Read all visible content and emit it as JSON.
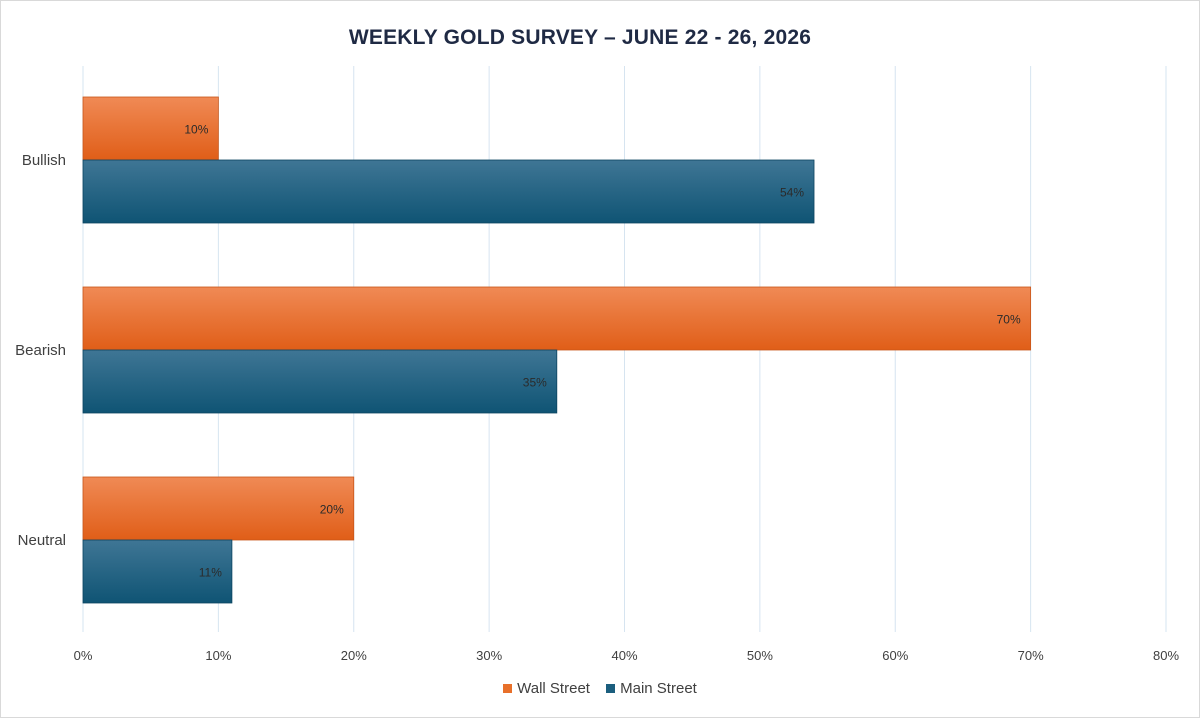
{
  "chart_data": {
    "type": "bar",
    "orientation": "horizontal",
    "title": "WEEKLY GOLD SURVEY – JUNE 22 - 26, 2026",
    "categories": [
      "Bullish",
      "Bearish",
      "Neutral"
    ],
    "series": [
      {
        "name": "Wall Street",
        "values": [
          10,
          70,
          20
        ],
        "labels": [
          "10%",
          "70%",
          "20%"
        ],
        "color": "#e8702a"
      },
      {
        "name": "Main Street",
        "values": [
          54,
          35,
          11
        ],
        "labels": [
          "54%",
          "35%",
          "11%"
        ],
        "color": "#1b5e7e"
      }
    ],
    "xlim": [
      0,
      80
    ],
    "x_ticks": [
      "0%",
      "10%",
      "20%",
      "30%",
      "40%",
      "50%",
      "60%",
      "70%",
      "80%"
    ],
    "grid": true,
    "legend_position": "bottom"
  },
  "colors": {
    "grid": "#d6e4f0",
    "axis_text": "#404040",
    "title": "#1f2a44"
  }
}
